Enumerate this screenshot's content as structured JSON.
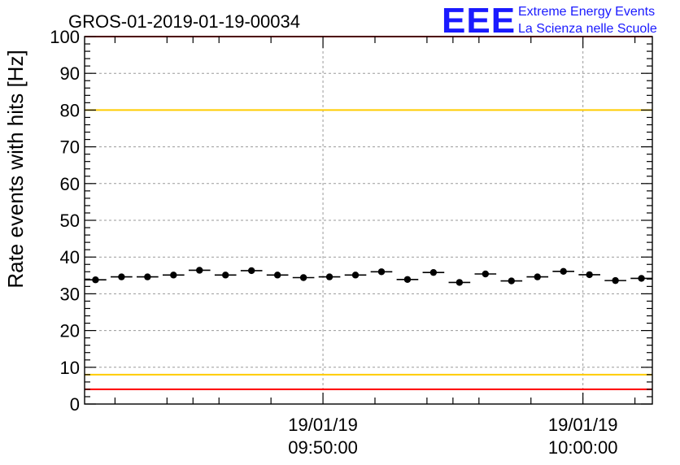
{
  "chart_data": {
    "type": "scatter",
    "title": "GROS-01-2019-01-19-00034",
    "ylabel": "Rate events with hits [Hz]",
    "xlabel": "",
    "ylim": [
      0,
      100
    ],
    "xlim_minutes": [
      -3.17,
      18.67
    ],
    "y_ticks": [
      "0",
      "10",
      "20",
      "30",
      "40",
      "50",
      "60",
      "70",
      "80",
      "90",
      "100"
    ],
    "x_ticks": [
      {
        "date": "19/01/19",
        "time": "09:50:00",
        "minutes": 6
      },
      {
        "date": "19/01/19",
        "time": "10:00:00",
        "minutes": 16
      }
    ],
    "x_unit": "minutes after 09:44:00",
    "grid": true,
    "bin_width_minutes": 0.8333,
    "series": [
      {
        "color": "#000000",
        "x": [
          -2.75,
          -1.75,
          -0.75,
          0.25,
          1.25,
          2.25,
          3.25,
          4.25,
          5.25,
          6.25,
          7.25,
          8.25,
          9.25,
          10.25,
          11.25,
          12.25,
          13.25,
          14.25,
          15.25,
          16.25,
          17.25,
          18.25
        ],
        "y": [
          33.8,
          34.6,
          34.6,
          35.1,
          36.4,
          35.1,
          36.3,
          35.1,
          34.4,
          34.6,
          35.1,
          36.0,
          33.9,
          35.8,
          33.1,
          35.4,
          33.5,
          34.6,
          36.1,
          35.2,
          33.6,
          34.2
        ]
      }
    ],
    "threshold_lines": [
      {
        "value": 100,
        "color": "#ff0000"
      },
      {
        "value": 80,
        "color": "#ffcc00"
      },
      {
        "value": 8,
        "color": "#ffcc00"
      },
      {
        "value": 4,
        "color": "#ff0000"
      }
    ]
  },
  "logo": {
    "mark": "EEE",
    "line1": "Extreme Energy Events",
    "line2": "La Scienza nelle Scuole",
    "color": "#1a1aff"
  }
}
